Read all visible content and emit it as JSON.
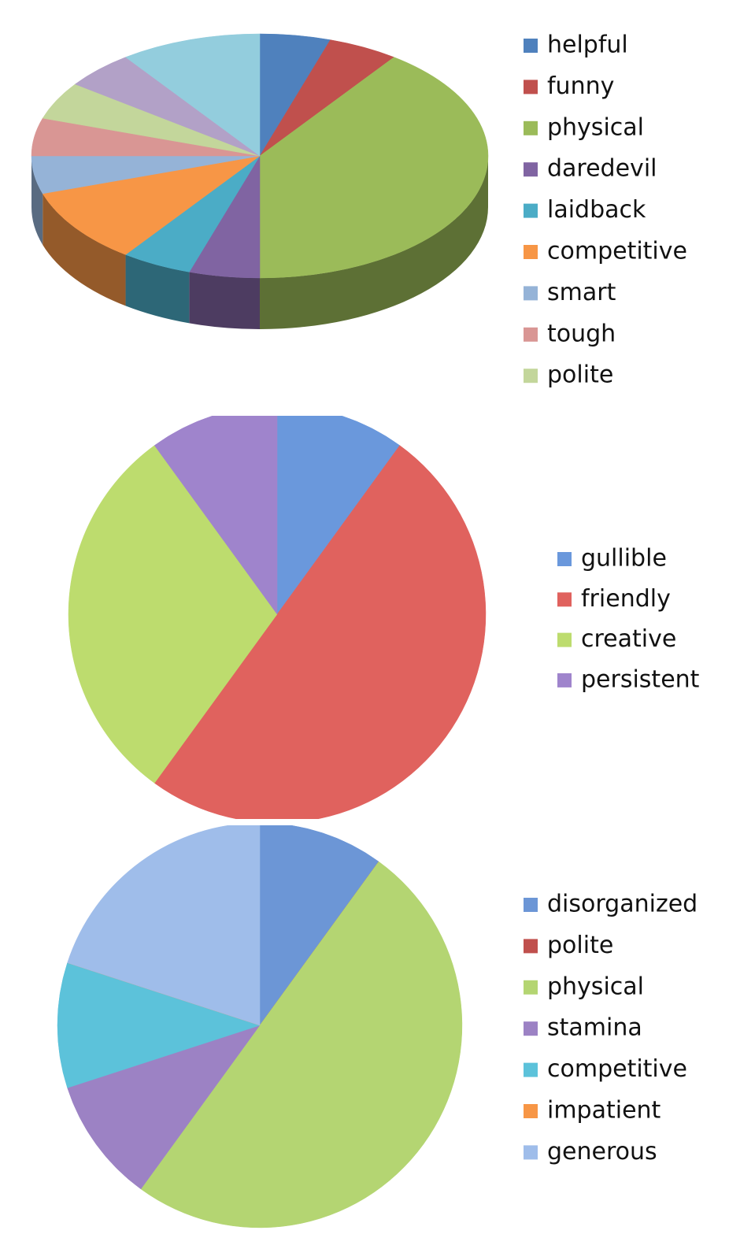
{
  "chart_data": [
    {
      "type": "pie3d",
      "categories": [
        "helpful",
        "funny",
        "physical",
        "daredevil",
        "laidback",
        "competitive",
        "smart",
        "tough",
        "polite",
        null,
        null
      ],
      "values": [
        5,
        5,
        40,
        5,
        5,
        10,
        5,
        5,
        5,
        5,
        10
      ],
      "colors": [
        "#4f81bd",
        "#c0504d",
        "#9bbb59",
        "#8064a2",
        "#4bacc6",
        "#f79646",
        "#95b3d7",
        "#d99694",
        "#c3d69b",
        "#b2a1c7",
        "#93cddd"
      ]
    },
    {
      "type": "pie",
      "categories": [
        "gullible",
        "friendly",
        "creative",
        "persistent"
      ],
      "values": [
        10,
        50,
        30,
        10
      ],
      "colors": [
        "#6a98dc",
        "#e0625e",
        "#bddc6e",
        "#9f84cc"
      ]
    },
    {
      "type": "pie",
      "categories": [
        "disorganized",
        "polite",
        "physical",
        "stamina",
        "competitive",
        "impatient",
        "generous"
      ],
      "values": [
        10,
        0,
        50,
        10,
        10,
        0,
        20
      ],
      "colors": [
        "#6c96d6",
        "#c0504d",
        "#b4d572",
        "#9c82c4",
        "#5cc2da",
        "#f79646",
        "#9fbdea"
      ]
    }
  ]
}
